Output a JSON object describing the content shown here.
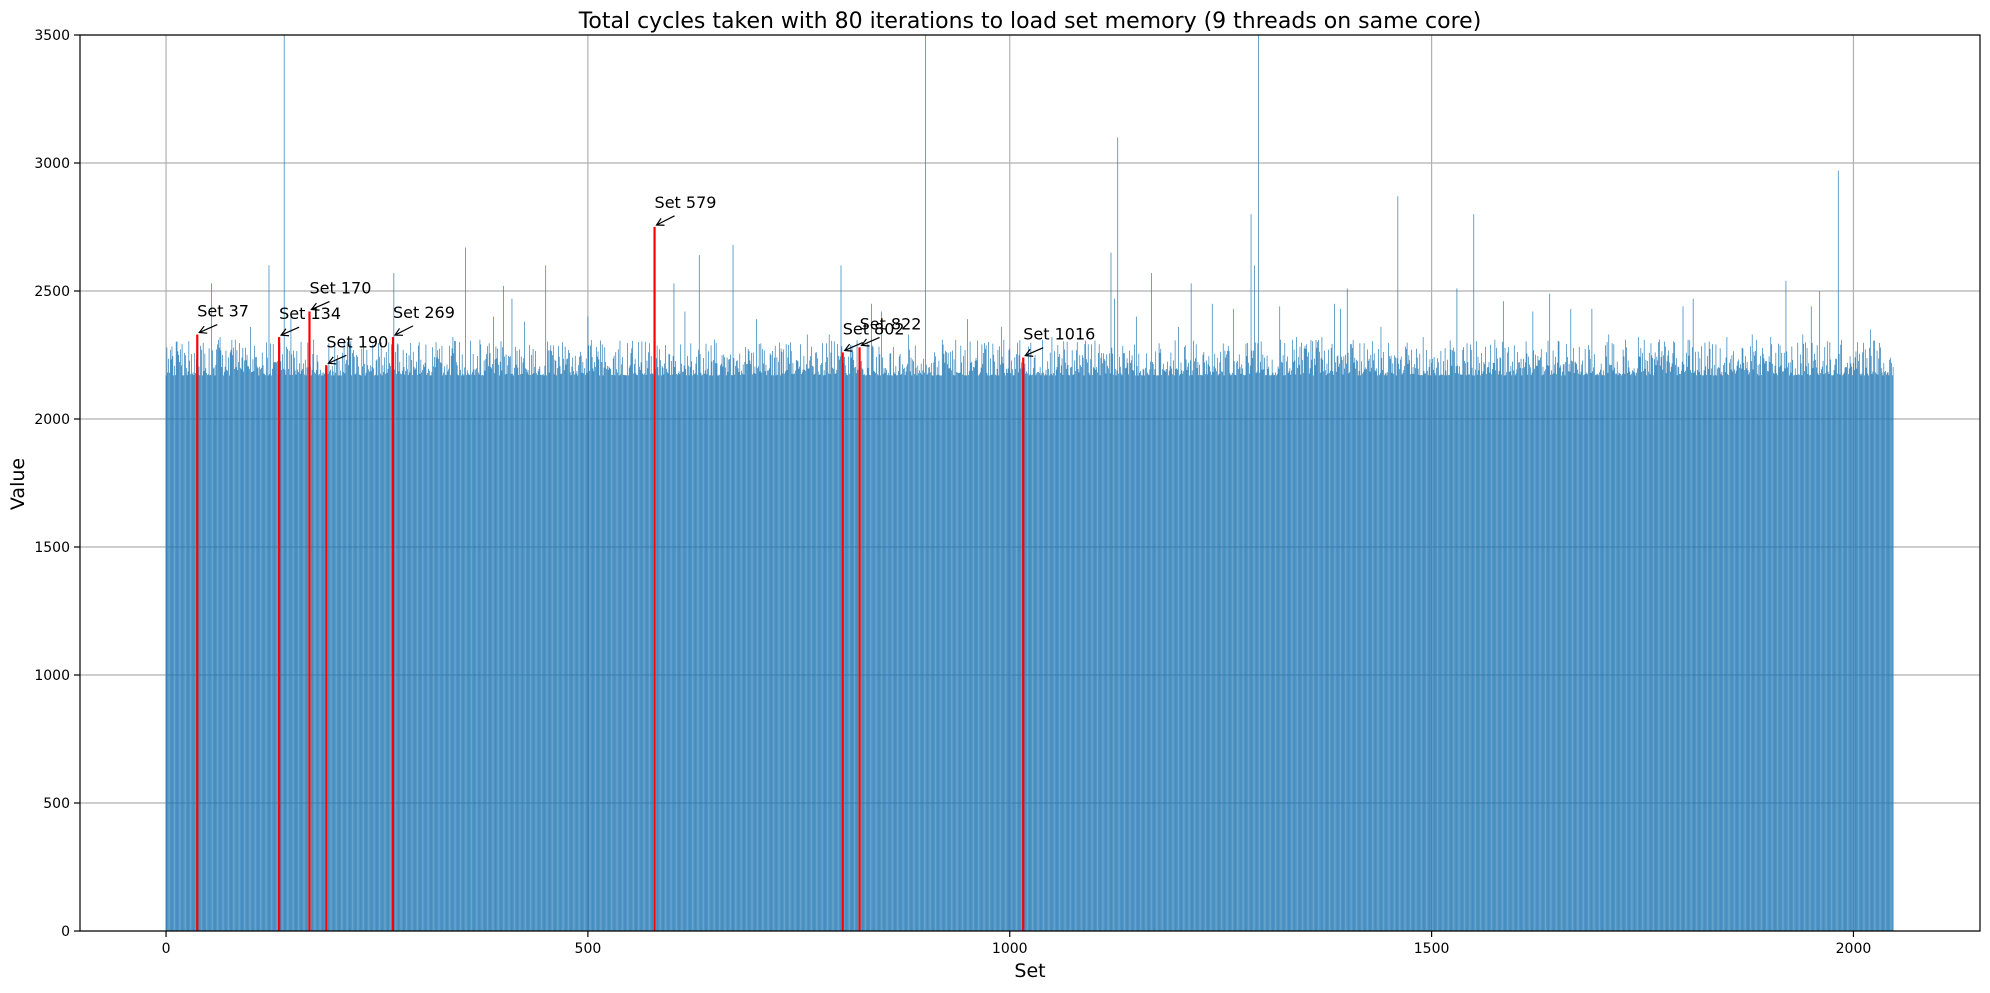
{
  "chart_data": {
    "type": "bar",
    "title": "Total cycles taken with 80 iterations to load set memory (9 threads on same core)",
    "xlabel": "Set",
    "ylabel": "Value",
    "xlim": [
      -102,
      2150
    ],
    "ylim": [
      0,
      3500
    ],
    "xticks": [
      0,
      500,
      1000,
      1500,
      2000
    ],
    "yticks": [
      0,
      500,
      1000,
      1500,
      2000,
      2500,
      3000,
      3500
    ],
    "grid": true,
    "n_sets": 2048,
    "baseline_min": 2150,
    "baseline_max": 2290,
    "colors": {
      "bar": "#1f77b4",
      "highlight": "#ff0000",
      "grid": "#b0b0b0",
      "axis": "#000000"
    },
    "spikes": [
      {
        "x": 5,
        "y": 2270
      },
      {
        "x": 54,
        "y": 2530
      },
      {
        "x": 64,
        "y": 2320
      },
      {
        "x": 82,
        "y": 2310
      },
      {
        "x": 100,
        "y": 2360
      },
      {
        "x": 122,
        "y": 2600
      },
      {
        "x": 140,
        "y": 3500
      },
      {
        "x": 148,
        "y": 2400
      },
      {
        "x": 175,
        "y": 2310
      },
      {
        "x": 200,
        "y": 2290
      },
      {
        "x": 215,
        "y": 2300
      },
      {
        "x": 234,
        "y": 2300
      },
      {
        "x": 245,
        "y": 2290
      },
      {
        "x": 270,
        "y": 2570
      },
      {
        "x": 300,
        "y": 2300
      },
      {
        "x": 320,
        "y": 2300
      },
      {
        "x": 340,
        "y": 2320
      },
      {
        "x": 355,
        "y": 2670
      },
      {
        "x": 372,
        "y": 2310
      },
      {
        "x": 388,
        "y": 2400
      },
      {
        "x": 400,
        "y": 2520
      },
      {
        "x": 410,
        "y": 2470
      },
      {
        "x": 425,
        "y": 2380
      },
      {
        "x": 450,
        "y": 2600
      },
      {
        "x": 470,
        "y": 2300
      },
      {
        "x": 500,
        "y": 2400
      },
      {
        "x": 520,
        "y": 2280
      },
      {
        "x": 560,
        "y": 2300
      },
      {
        "x": 602,
        "y": 2530
      },
      {
        "x": 615,
        "y": 2420
      },
      {
        "x": 632,
        "y": 2640
      },
      {
        "x": 650,
        "y": 2310
      },
      {
        "x": 672,
        "y": 2680
      },
      {
        "x": 700,
        "y": 2390
      },
      {
        "x": 740,
        "y": 2300
      },
      {
        "x": 760,
        "y": 2330
      },
      {
        "x": 786,
        "y": 2330
      },
      {
        "x": 800,
        "y": 2600
      },
      {
        "x": 836,
        "y": 2450
      },
      {
        "x": 848,
        "y": 2420
      },
      {
        "x": 880,
        "y": 2330
      },
      {
        "x": 900,
        "y": 3500
      },
      {
        "x": 920,
        "y": 2310
      },
      {
        "x": 950,
        "y": 2390
      },
      {
        "x": 990,
        "y": 2360
      },
      {
        "x": 1050,
        "y": 2320
      },
      {
        "x": 1080,
        "y": 2300
      },
      {
        "x": 1120,
        "y": 2650
      },
      {
        "x": 1124,
        "y": 2470
      },
      {
        "x": 1128,
        "y": 3100
      },
      {
        "x": 1150,
        "y": 2400
      },
      {
        "x": 1168,
        "y": 2570
      },
      {
        "x": 1200,
        "y": 2360
      },
      {
        "x": 1215,
        "y": 2530
      },
      {
        "x": 1240,
        "y": 2450
      },
      {
        "x": 1265,
        "y": 2430
      },
      {
        "x": 1286,
        "y": 2800
      },
      {
        "x": 1290,
        "y": 2600
      },
      {
        "x": 1295,
        "y": 3500
      },
      {
        "x": 1320,
        "y": 2440
      },
      {
        "x": 1340,
        "y": 2320
      },
      {
        "x": 1370,
        "y": 2320
      },
      {
        "x": 1385,
        "y": 2450
      },
      {
        "x": 1392,
        "y": 2430
      },
      {
        "x": 1400,
        "y": 2510
      },
      {
        "x": 1440,
        "y": 2360
      },
      {
        "x": 1460,
        "y": 2870
      },
      {
        "x": 1490,
        "y": 2320
      },
      {
        "x": 1530,
        "y": 2510
      },
      {
        "x": 1550,
        "y": 2800
      },
      {
        "x": 1575,
        "y": 2310
      },
      {
        "x": 1585,
        "y": 2460
      },
      {
        "x": 1620,
        "y": 2420
      },
      {
        "x": 1640,
        "y": 2490
      },
      {
        "x": 1665,
        "y": 2430
      },
      {
        "x": 1690,
        "y": 2430
      },
      {
        "x": 1710,
        "y": 2330
      },
      {
        "x": 1745,
        "y": 2320
      },
      {
        "x": 1770,
        "y": 2310
      },
      {
        "x": 1798,
        "y": 2440
      },
      {
        "x": 1810,
        "y": 2470
      },
      {
        "x": 1850,
        "y": 2320
      },
      {
        "x": 1880,
        "y": 2330
      },
      {
        "x": 1902,
        "y": 2320
      },
      {
        "x": 1920,
        "y": 2540
      },
      {
        "x": 1940,
        "y": 2330
      },
      {
        "x": 1950,
        "y": 2440
      },
      {
        "x": 1960,
        "y": 2500
      },
      {
        "x": 1972,
        "y": 2300
      },
      {
        "x": 1982,
        "y": 2970
      },
      {
        "x": 2005,
        "y": 2300
      },
      {
        "x": 2020,
        "y": 2350
      }
    ],
    "highlighted": [
      {
        "set": 37,
        "value": 2330,
        "label": "Set 37",
        "text_xy": [
          37,
          2400
        ]
      },
      {
        "set": 134,
        "value": 2320,
        "label": "Set 134",
        "text_xy": [
          134,
          2390
        ]
      },
      {
        "set": 170,
        "value": 2420,
        "label": "Set 170",
        "text_xy": [
          170,
          2490
        ]
      },
      {
        "set": 190,
        "value": 2210,
        "label": "Set 190",
        "text_xy": [
          190,
          2280
        ]
      },
      {
        "set": 269,
        "value": 2320,
        "label": "Set 269",
        "text_xy": [
          269,
          2395
        ]
      },
      {
        "set": 579,
        "value": 2750,
        "label": "Set 579",
        "text_xy": [
          579,
          2825
        ]
      },
      {
        "set": 802,
        "value": 2260,
        "label": "Set 802",
        "text_xy": [
          802,
          2330
        ]
      },
      {
        "set": 822,
        "value": 2280,
        "label": "Set 822",
        "text_xy": [
          822,
          2350
        ]
      },
      {
        "set": 1016,
        "value": 2240,
        "label": "Set 1016",
        "text_xy": [
          1016,
          2310
        ]
      }
    ]
  }
}
